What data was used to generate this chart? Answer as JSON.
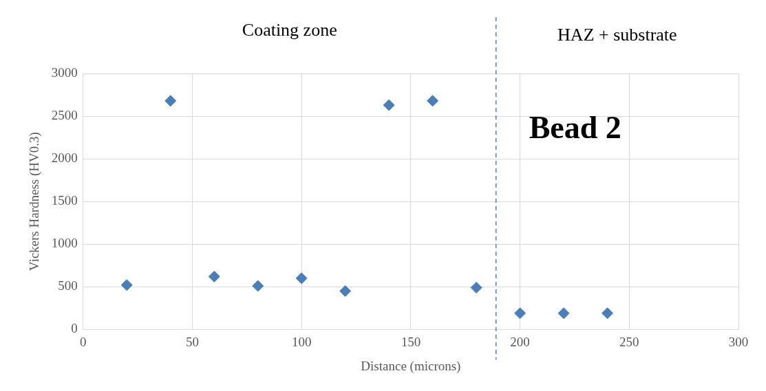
{
  "chart_data": {
    "type": "scatter",
    "xlabel": "Distance (microns)",
    "ylabel": "Vickers Hardness (HV0.3)",
    "x": [
      20,
      40,
      60,
      80,
      100,
      120,
      140,
      160,
      180,
      200,
      220,
      240
    ],
    "values": [
      520,
      2680,
      620,
      510,
      600,
      450,
      2630,
      2680,
      490,
      190,
      190,
      190
    ],
    "color": "#4a7ebb",
    "marker": "diamond",
    "xlim": [
      0,
      300
    ],
    "xticks": [
      0,
      50,
      100,
      150,
      200,
      250,
      300
    ],
    "ylim": [
      0,
      3000
    ],
    "yticks": [
      0,
      500,
      1000,
      1500,
      2000,
      2500,
      3000
    ],
    "grid": true,
    "legend": false,
    "ref_lines": [
      {
        "axis": "x",
        "value": 189,
        "color": "#4a7ebb",
        "line_style": "dashed"
      }
    ],
    "annotations": [
      "Coating zone",
      "HAZ + substrate",
      "Bead 2"
    ]
  }
}
